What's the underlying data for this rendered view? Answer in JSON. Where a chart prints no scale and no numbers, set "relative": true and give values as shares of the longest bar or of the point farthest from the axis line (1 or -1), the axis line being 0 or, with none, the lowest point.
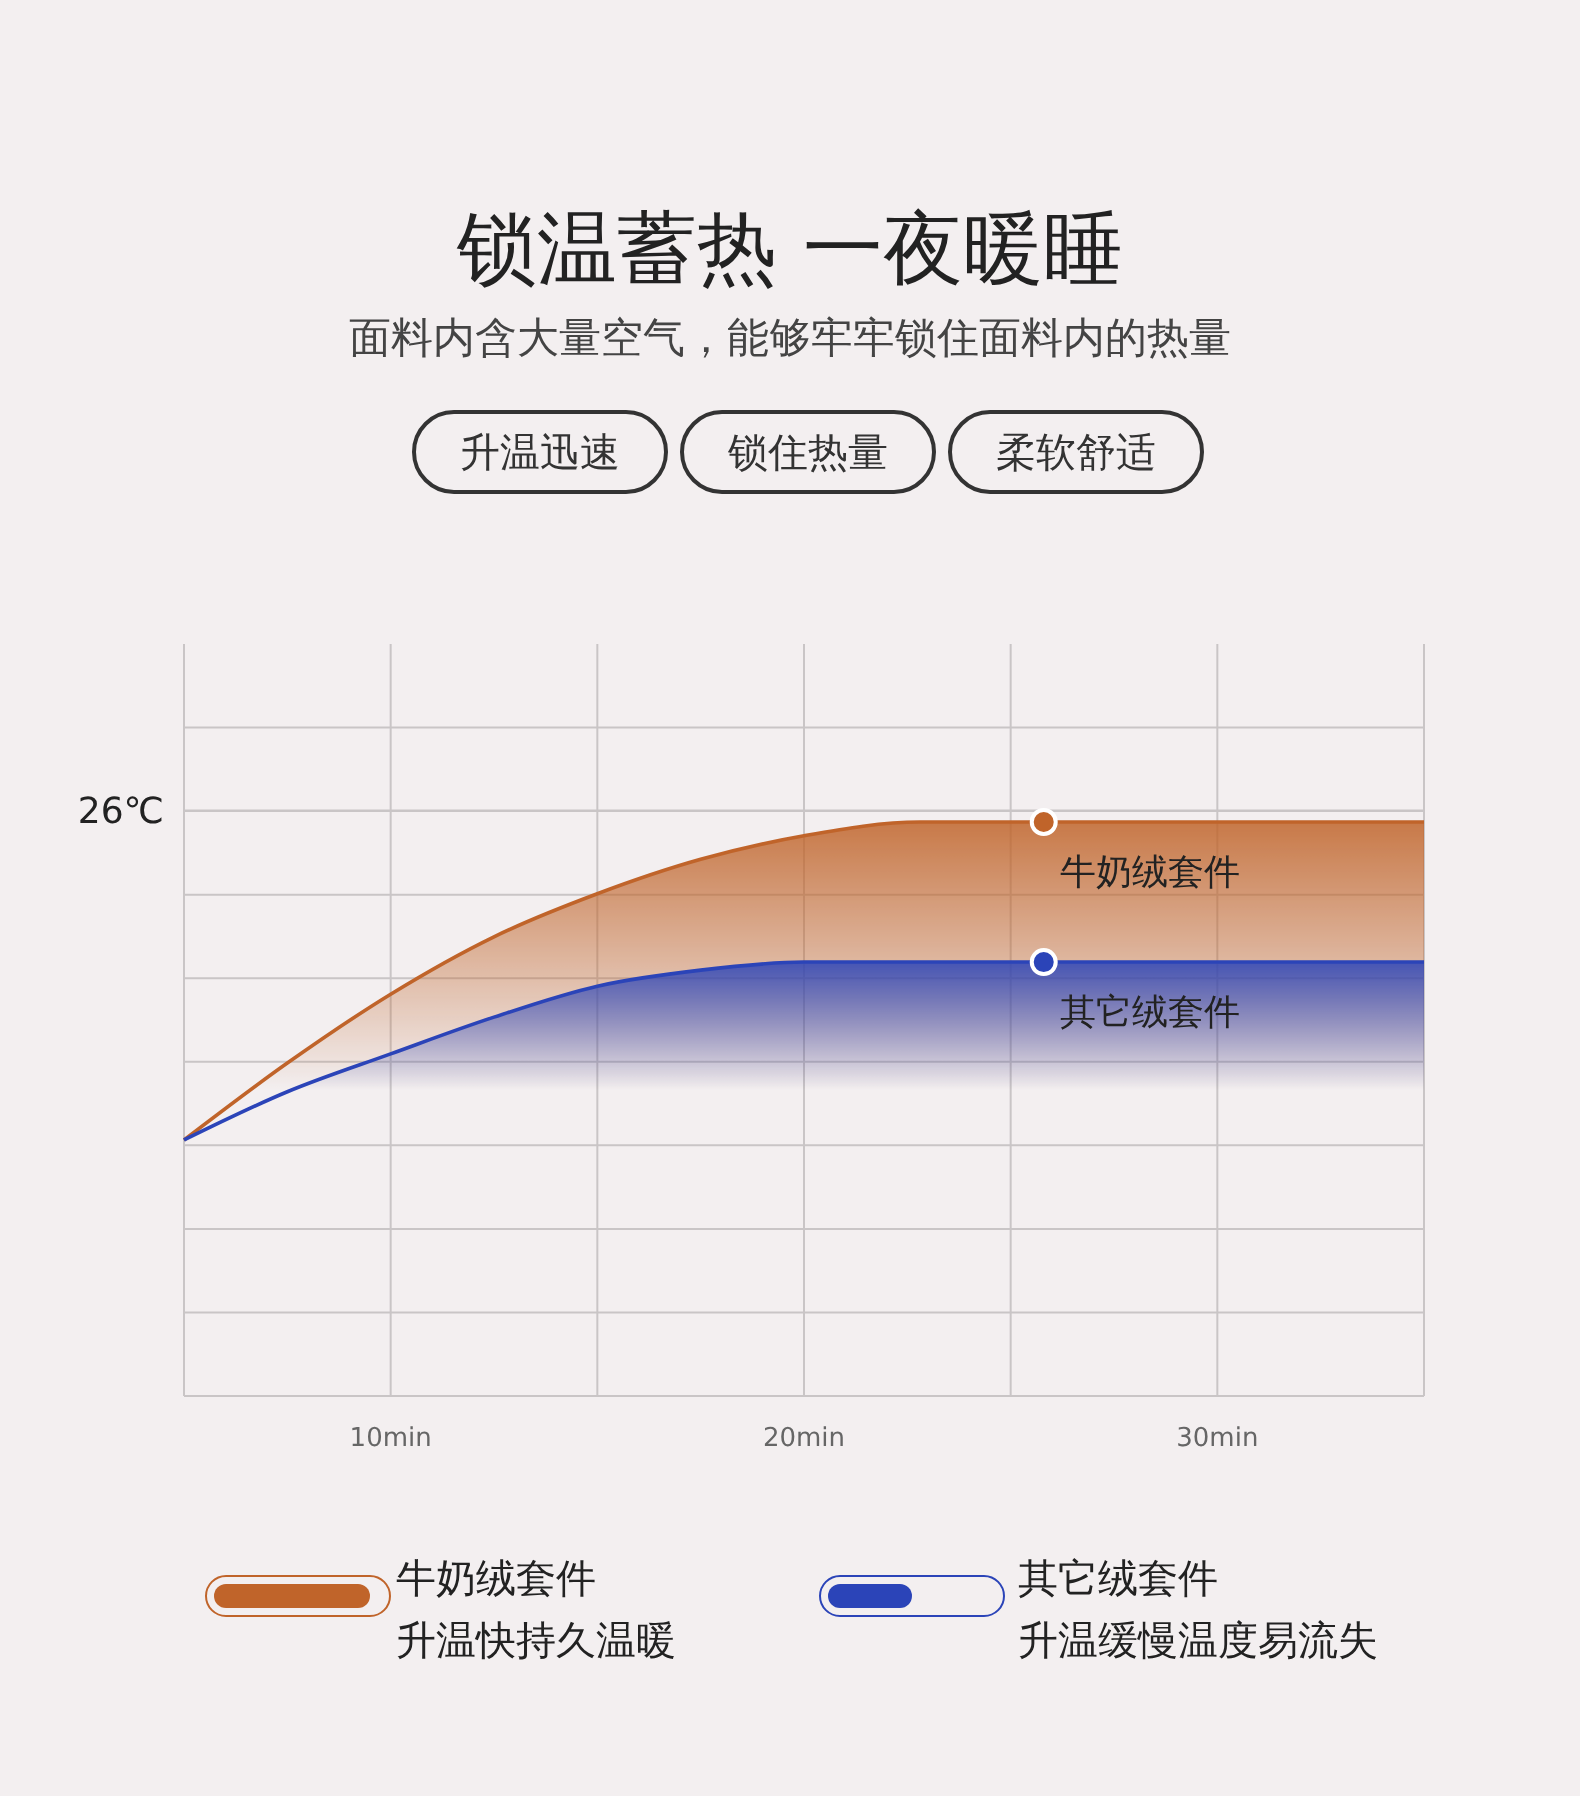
{
  "chart_data": {
    "type": "area",
    "title": "锁温蓄热 一夜暖睡",
    "subtitle": "面料内含大量空气，能够牢牢锁住面料内的热量",
    "relative": true,
    "x": [
      5,
      7.5,
      10,
      12.5,
      15,
      17.5,
      20,
      22.8,
      25,
      30,
      35
    ],
    "series": [
      {
        "name": "牛奶绒套件",
        "color": "#c0642a",
        "values": [
          0.446,
          0.58,
          0.7,
          0.8,
          0.875,
          0.935,
          0.976,
          1,
          1,
          1,
          1
        ]
      },
      {
        "name": "其它绒套件",
        "color": "#2b44b8",
        "values": [
          0.446,
          0.53,
          0.596,
          0.66,
          0.714,
          0.742,
          0.756,
          0.756,
          0.756,
          0.756,
          0.756
        ]
      }
    ],
    "xlim": [
      5,
      35
    ],
    "xticks": [
      {
        "value": 5,
        "label": null
      },
      {
        "value": 10,
        "label": "10min"
      },
      {
        "value": 15,
        "label": null
      },
      {
        "value": 20,
        "label": "20min"
      },
      {
        "value": 25,
        "label": null
      },
      {
        "value": 30,
        "label": "30min"
      },
      {
        "value": 35,
        "label": null
      }
    ],
    "grid": true,
    "legend": "bottom",
    "ref_lines": [
      {
        "axis": "y",
        "value": 1.02,
        "label": "26℃"
      }
    ],
    "annotations": [
      "升温迅速",
      "锁住热量",
      "柔软舒适",
      {
        "text": "牛奶绒套件",
        "x": 25.8,
        "y": 1
      },
      {
        "text": "其它绒套件",
        "x": 25.8,
        "y": 0.756
      },
      "升温快持久温暖",
      "升温缓慢温度易流失"
    ]
  }
}
